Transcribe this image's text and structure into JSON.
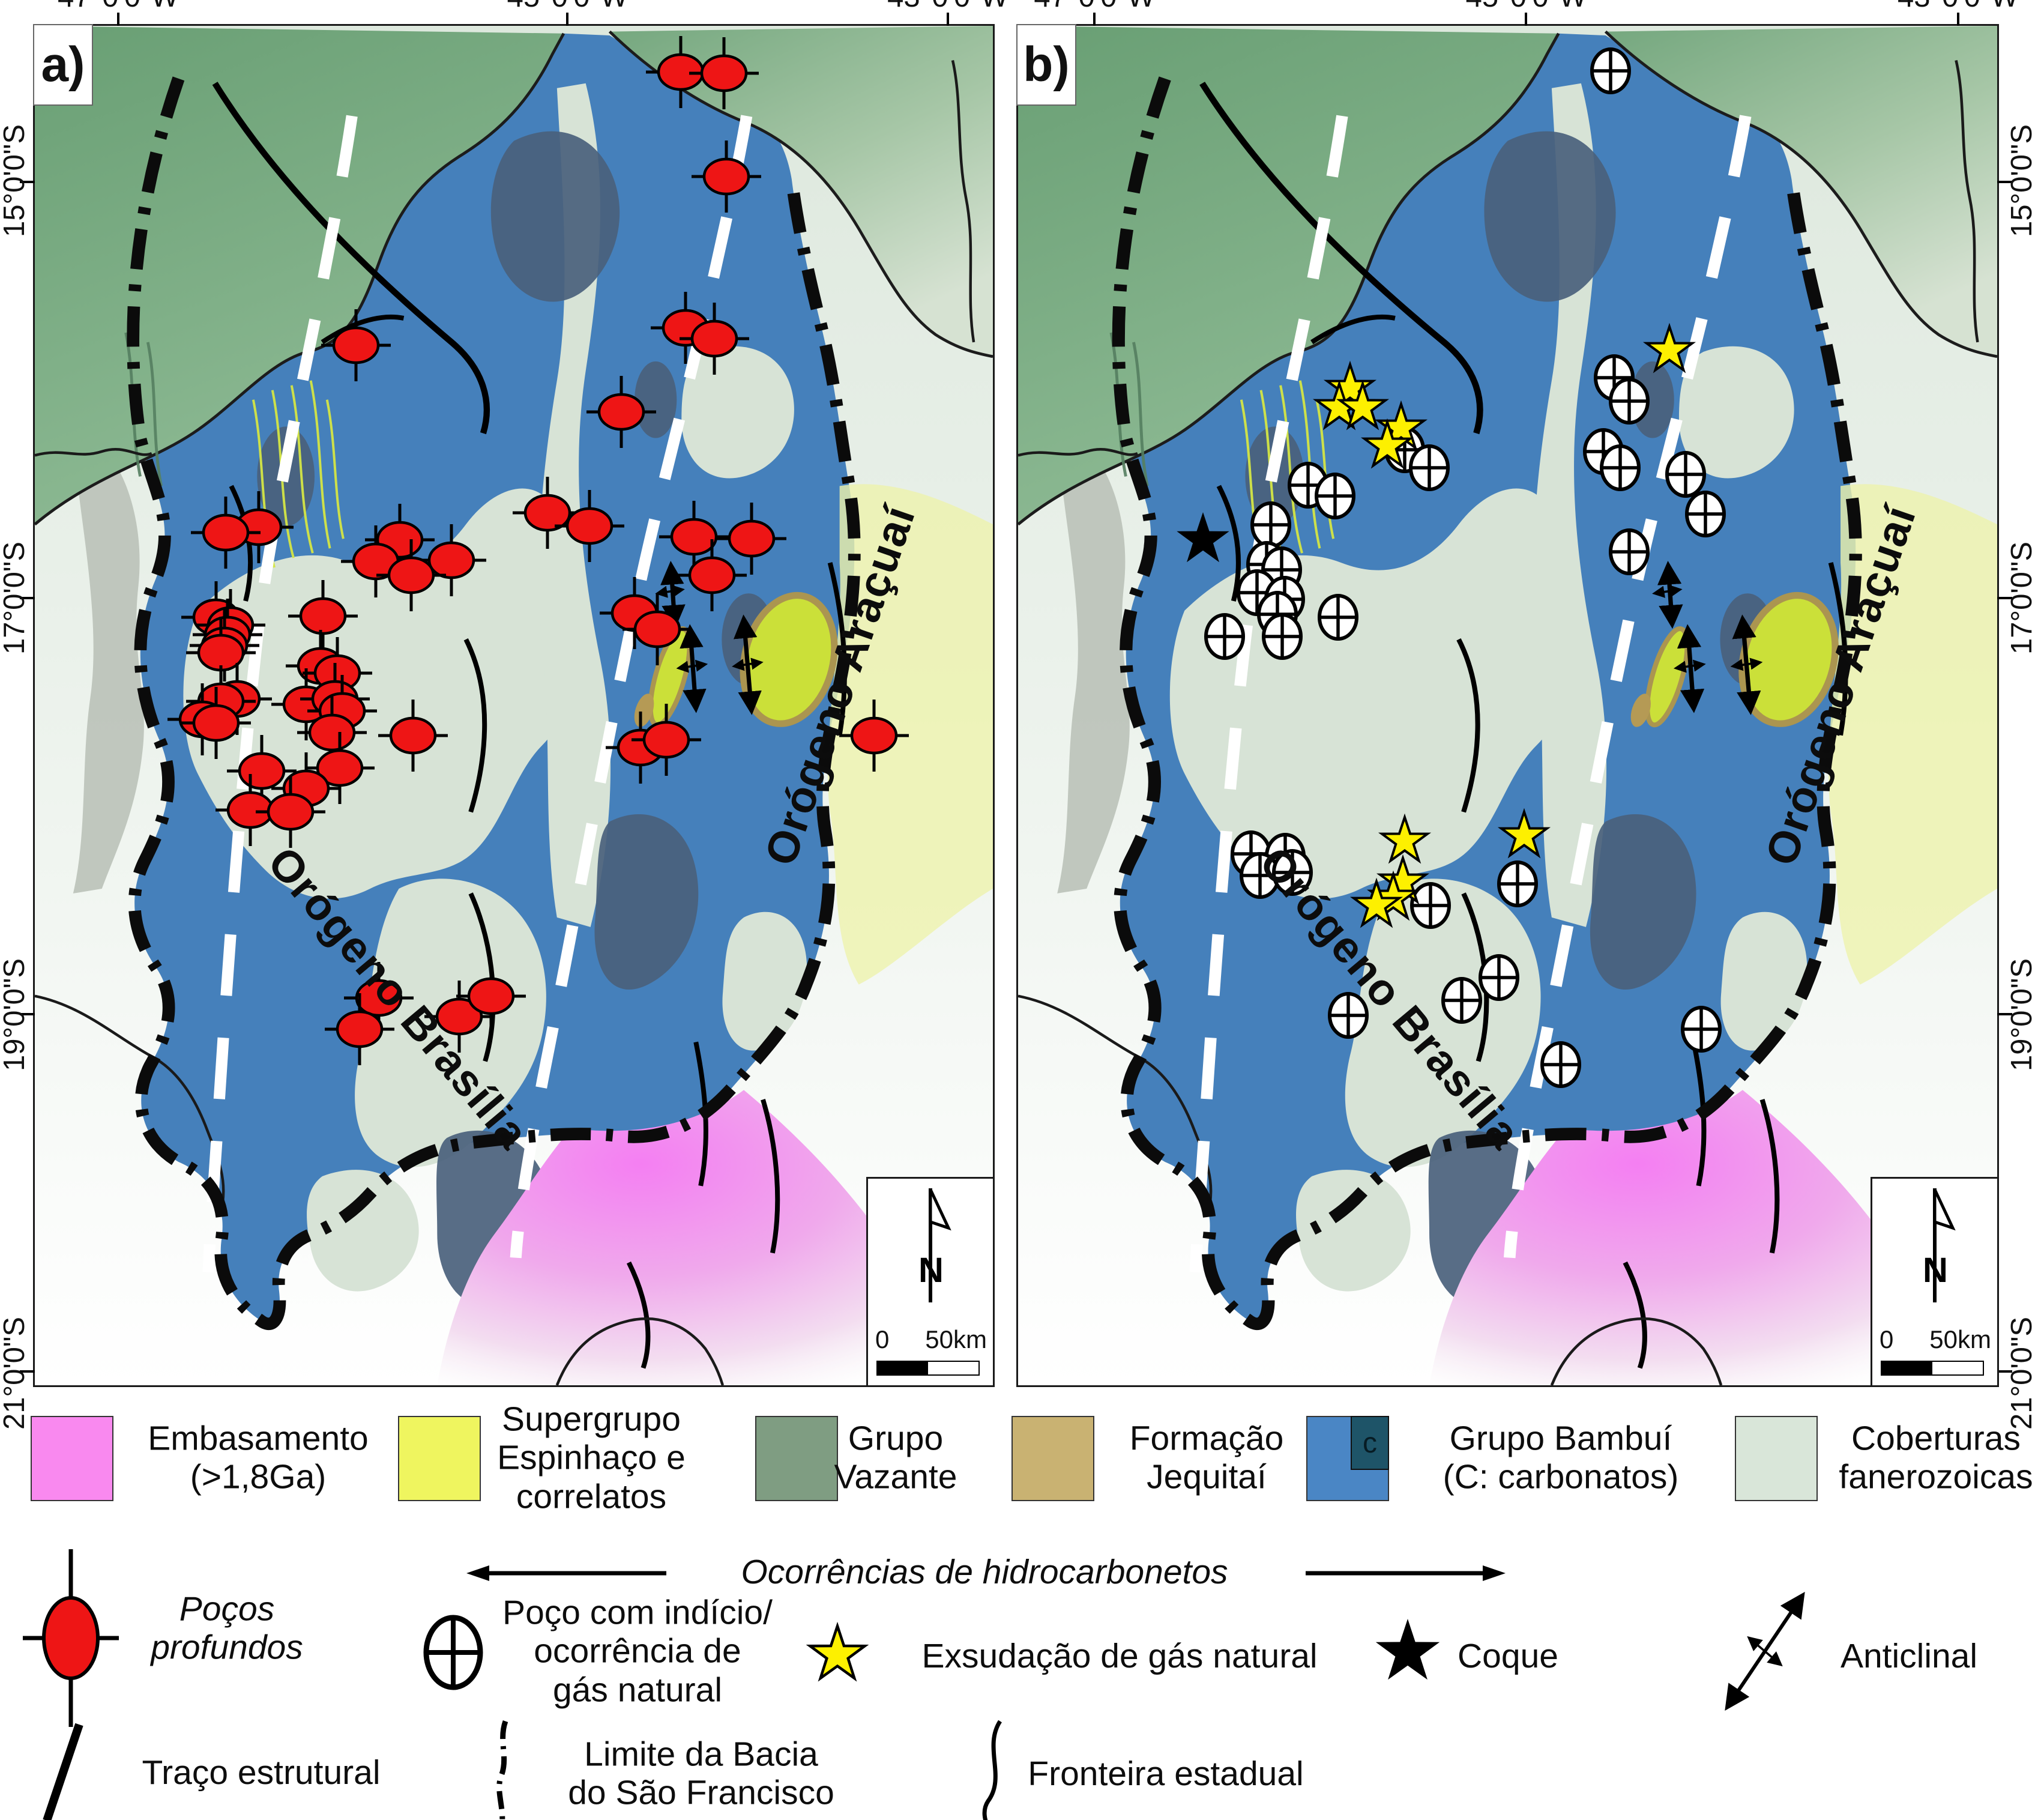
{
  "figure": {
    "type": "geological-map-figure",
    "region": "São Francisco Basin",
    "panel_count": 2
  },
  "colors": {
    "embasamento_pink": "#f989ef",
    "espinhaco_yellow": "#eff55f",
    "vazante_green": "#7f9d82",
    "jequitai_tan": "#c9b272",
    "bambui_blue": "#4a86c5",
    "carbonato_dark": "#1e5468",
    "coberturas_light": "#d9e6d9",
    "deep_well_red": "#ee1515",
    "gas_star_yellow": "#fdf000",
    "map_blue": "#4580bb",
    "map_green": "#74a77e"
  },
  "lat_ticks": [
    {
      "label": "15°0'0\"S",
      "y_pct": 11.5
    },
    {
      "label": "17°0'0\"S",
      "y_pct": 42.1
    },
    {
      "label": "19°0'0\"S",
      "y_pct": 72.7
    },
    {
      "label": "21°0'0\"S",
      "y_pct": 99.0
    }
  ],
  "panels": [
    {
      "label": "a)",
      "orogen_west": "Orógeno Brasília",
      "orogen_east": "Orógeno Araçuaí",
      "scale": {
        "zero": "0",
        "distance": "50km",
        "north": "N"
      },
      "top_ticks": [
        {
          "label": "47°0'0\"W",
          "x_pct": 8.7
        },
        {
          "label": "45°0'0\"W",
          "x_pct": 55.6
        },
        {
          "label": "43°0'0\"W",
          "x_pct": 95.3
        }
      ],
      "markers": {
        "deep_wells": [
          [
            67.4,
            3.4
          ],
          [
            71.9,
            3.5
          ],
          [
            72.2,
            11.1
          ],
          [
            33.5,
            23.5
          ],
          [
            67.9,
            22.2
          ],
          [
            70.9,
            23.0
          ],
          [
            61.2,
            28.4
          ],
          [
            23.4,
            36.9
          ],
          [
            53.5,
            35.8
          ],
          [
            57.9,
            36.8
          ],
          [
            68.8,
            37.6
          ],
          [
            74.8,
            37.7
          ],
          [
            38.1,
            37.8
          ],
          [
            43.5,
            39.3
          ],
          [
            19.9,
            37.3
          ],
          [
            35.6,
            39.4
          ],
          [
            39.3,
            40.4
          ],
          [
            70.7,
            40.4
          ],
          [
            30.1,
            43.4
          ],
          [
            18.9,
            43.5
          ],
          [
            20.4,
            44.1
          ],
          [
            20.1,
            44.8
          ],
          [
            19.8,
            45.6
          ],
          [
            19.4,
            46.1
          ],
          [
            62.6,
            43.2
          ],
          [
            65.0,
            44.4
          ],
          [
            29.8,
            47.1
          ],
          [
            31.6,
            47.6
          ],
          [
            21.1,
            49.5
          ],
          [
            19.4,
            49.7
          ],
          [
            17.5,
            51.0
          ],
          [
            18.9,
            51.3
          ],
          [
            28.3,
            49.9
          ],
          [
            31.3,
            49.5
          ],
          [
            32.1,
            50.4
          ],
          [
            31.0,
            52.0
          ],
          [
            39.5,
            52.2
          ],
          [
            63.2,
            53.1
          ],
          [
            65.9,
            52.5
          ],
          [
            87.6,
            52.2
          ],
          [
            31.8,
            54.6
          ],
          [
            23.7,
            54.8
          ],
          [
            28.3,
            56.1
          ],
          [
            22.5,
            57.7
          ],
          [
            26.7,
            57.8
          ],
          [
            35.9,
            71.5
          ],
          [
            33.9,
            73.8
          ],
          [
            44.3,
            72.9
          ],
          [
            47.6,
            71.4
          ]
        ]
      }
    },
    {
      "label": "b)",
      "orogen_west": "Orógeno Brasília",
      "orogen_east": "Orógeno Araçuaí",
      "scale": {
        "zero": "0",
        "distance": "50km",
        "north": "N"
      },
      "top_ticks": [
        {
          "label": "47°0'0\"W",
          "x_pct": 7.8
        },
        {
          "label": "45°0'0\"W",
          "x_pct": 51.9
        },
        {
          "label": "43°0'0\"W",
          "x_pct": 96.0
        }
      ],
      "markers": {
        "gas_wells": [
          [
            60.5,
            3.3
          ],
          [
            39.5,
            31.2
          ],
          [
            42.0,
            32.5
          ],
          [
            29.6,
            33.8
          ],
          [
            32.4,
            34.6
          ],
          [
            25.8,
            36.7
          ],
          [
            25.4,
            39.6
          ],
          [
            26.9,
            40.0
          ],
          [
            24.4,
            41.7
          ],
          [
            27.2,
            42.2
          ],
          [
            26.5,
            43.3
          ],
          [
            32.7,
            43.5
          ],
          [
            27.0,
            44.9
          ],
          [
            21.1,
            44.9
          ],
          [
            60.9,
            25.9
          ],
          [
            62.4,
            27.6
          ],
          [
            59.8,
            31.3
          ],
          [
            61.5,
            32.5
          ],
          [
            68.2,
            33.0
          ],
          [
            70.2,
            35.9
          ],
          [
            62.4,
            38.7
          ],
          [
            23.8,
            60.9
          ],
          [
            27.3,
            61.1
          ],
          [
            24.7,
            62.5
          ],
          [
            28.0,
            62.3
          ],
          [
            42.1,
            64.7
          ],
          [
            51.0,
            63.1
          ],
          [
            49.1,
            70.0
          ],
          [
            45.3,
            71.7
          ],
          [
            33.7,
            72.8
          ],
          [
            55.4,
            76.4
          ],
          [
            69.8,
            73.8
          ]
        ],
        "gas_seeps": [
          [
            33.9,
            26.7
          ],
          [
            32.8,
            28.1
          ],
          [
            35.2,
            28.1
          ],
          [
            39.1,
            29.6
          ],
          [
            37.7,
            30.9
          ],
          [
            66.5,
            23.9
          ],
          [
            51.7,
            59.6
          ],
          [
            39.5,
            60.0
          ],
          [
            39.3,
            63.0
          ],
          [
            38.3,
            64.2
          ],
          [
            36.6,
            64.7
          ]
        ],
        "coque": [
          [
            18.9,
            37.8
          ]
        ]
      }
    }
  ],
  "legend": {
    "units": [
      {
        "label": "Embasamento\n(>1,8Ga)",
        "color": "#f989ef"
      },
      {
        "label": "Supergrupo\nEspinhaço e\ncorrelatos",
        "color": "#eff55f"
      },
      {
        "label": "Grupo\nVazante",
        "color": "#7f9d82"
      },
      {
        "label": "Formação\nJequitaí",
        "color": "#c9b272"
      },
      {
        "label": "Grupo Bambuí\n(C: carbonatos)",
        "color": "#4a86c5",
        "c_label": "c",
        "c_color": "#1e5468"
      },
      {
        "label": "Coberturas\nfanerozoicas",
        "color": "#d9e6d9"
      }
    ],
    "symbols": {
      "deep_wells": "Poços\nprofundos",
      "hydrocarbons_header": "Ocorrências de hidrocarbonetos",
      "gas_well": "Poço com indício/\nocorrência de\ngás natural",
      "gas_seep": "Exsudação de gás natural",
      "coque": "Coque",
      "anticline": "Anticlinal",
      "structural": "Traço estrutural",
      "basin_limit": "Limite da Bacia\ndo São Francisco",
      "state_border": "Fronteira estadual"
    }
  }
}
